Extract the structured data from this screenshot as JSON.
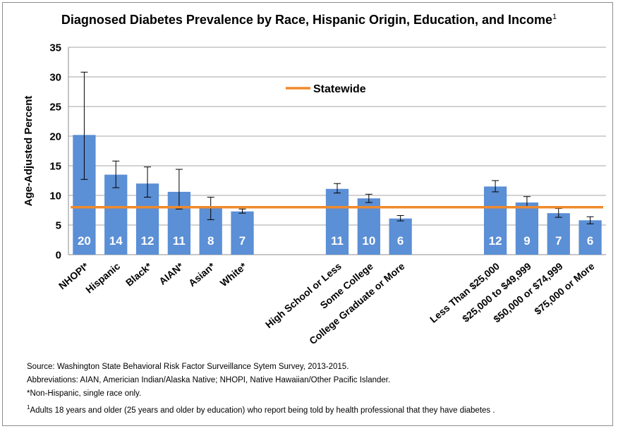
{
  "chart_data": {
    "type": "bar",
    "title": "Diagnosed Diabetes Prevalence by Race, Hispanic Origin, Education, and Income",
    "title_footnote_mark": "1",
    "ylabel": "Age-Adjusted Percent",
    "xlabel": "",
    "ylim": [
      0,
      35
    ],
    "yticks": [
      "0",
      "5",
      "10",
      "15",
      "20",
      "25",
      "30",
      "35"
    ],
    "grid": true,
    "bar_color": "#5b8fd6",
    "reference_line": {
      "name": "Statewide",
      "value": 8,
      "color": "#f08a2c"
    },
    "groups": [
      {
        "categories": [
          "NHOPI*",
          "Hispanic",
          "Black*",
          "AIAN*",
          "Asian*",
          "White*"
        ],
        "values": [
          20.2,
          13.5,
          12.0,
          10.6,
          7.8,
          7.3
        ],
        "labels": [
          "20",
          "14",
          "12",
          "11",
          "8",
          "7"
        ],
        "ci_low": [
          12.7,
          11.3,
          9.7,
          7.7,
          5.9,
          7.0
        ],
        "ci_high": [
          30.8,
          15.8,
          14.8,
          14.4,
          9.7,
          7.7
        ]
      },
      {
        "categories": [
          "High School or Less",
          "Some College",
          "College Graduate or More"
        ],
        "values": [
          11.1,
          9.5,
          6.1
        ],
        "labels": [
          "11",
          "10",
          "6"
        ],
        "ci_low": [
          10.4,
          8.8,
          5.7
        ],
        "ci_high": [
          12.0,
          10.2,
          6.6
        ]
      },
      {
        "categories": [
          "Less Than $25,000",
          "$25,000 to $49,999",
          "$50,000 or $74,999",
          "$75,000 or More"
        ],
        "values": [
          11.5,
          8.8,
          7.0,
          5.8
        ],
        "labels": [
          "12",
          "9",
          "7",
          "6"
        ],
        "ci_low": [
          10.6,
          8.0,
          6.3,
          5.2
        ],
        "ci_high": [
          12.5,
          9.8,
          7.8,
          6.4
        ]
      }
    ]
  },
  "notes": {
    "source": "Source: Washington State Behavioral Risk Factor Surveillance Sytem Survey, 2013-2015.",
    "abbreviations": "Abbreviations: AIAN, Americian Indian/Alaska Native; NHOPI, Native Hawaiian/Other Pacific Islander.",
    "non_hispanic": "*Non-Hispanic, single race only.",
    "footnote_mark": "1",
    "footnote": "Adults 18 years and older (25 years and older by education) who report being told by health professional that they have diabetes ."
  }
}
